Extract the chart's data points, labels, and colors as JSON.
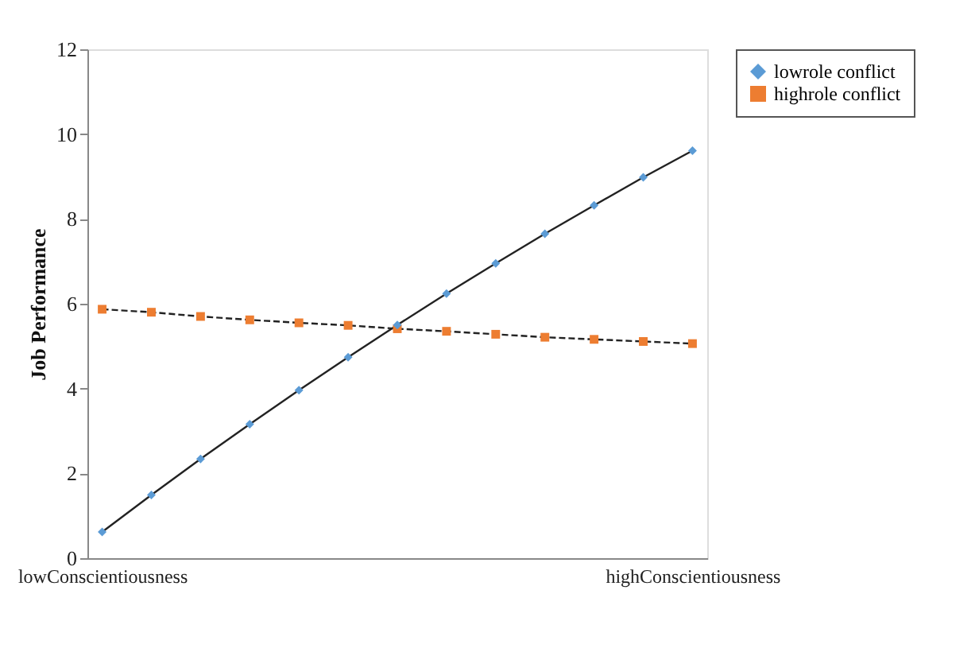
{
  "chart_data": {
    "type": "line",
    "ylabel": "Job Performance",
    "categories": [
      "lowConscientiousness",
      null,
      null,
      null,
      null,
      null,
      null,
      null,
      null,
      null,
      null,
      null,
      "highConscientiousness"
    ],
    "series": [
      {
        "name": "lowrole conflict",
        "color": "#5b9bd5",
        "marker": "diamond",
        "line_style": "solid",
        "values": [
          0.62,
          1.49,
          2.34,
          3.16,
          3.96,
          4.74,
          5.5,
          6.24,
          6.95,
          7.65,
          8.32,
          8.98,
          9.61
        ]
      },
      {
        "name": "highrole conflict",
        "color": "#ed7d31",
        "marker": "square",
        "line_style": "dashed",
        "values": [
          5.87,
          5.8,
          5.7,
          5.62,
          5.55,
          5.49,
          5.41,
          5.35,
          5.28,
          5.21,
          5.16,
          5.11,
          5.06
        ]
      }
    ],
    "ylim": [
      0,
      12
    ],
    "yticks": [
      0,
      2,
      4,
      6,
      8,
      10,
      12
    ],
    "grid": false,
    "legend": "right"
  }
}
